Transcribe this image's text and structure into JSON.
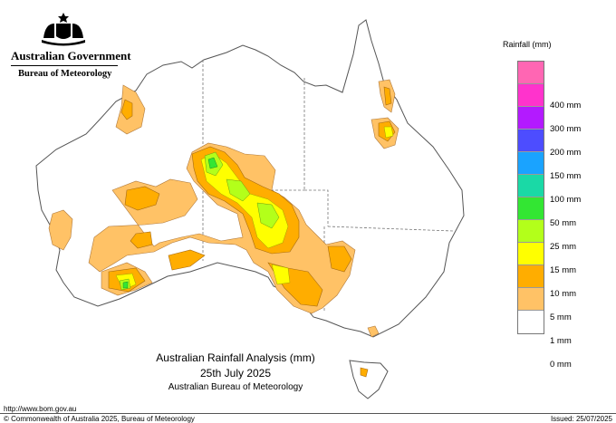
{
  "header": {
    "government": "Australian Government",
    "bureau": "Bureau of Meteorology"
  },
  "legend": {
    "title": "Rainfall (mm)",
    "items": [
      {
        "label": "",
        "color": "#ff66b3"
      },
      {
        "label": "400 mm",
        "color": "#ff33cc"
      },
      {
        "label": "300 mm",
        "color": "#b31aff"
      },
      {
        "label": "200 mm",
        "color": "#4d4dff"
      },
      {
        "label": "150 mm",
        "color": "#1aa3ff"
      },
      {
        "label": "100 mm",
        "color": "#1ad9a6"
      },
      {
        "label": "50 mm",
        "color": "#33e633"
      },
      {
        "label": "25 mm",
        "color": "#b3ff1a"
      },
      {
        "label": "15 mm",
        "color": "#ffff00"
      },
      {
        "label": "10 mm",
        "color": "#ffad00"
      },
      {
        "label": "5 mm",
        "color": "#ffc266"
      },
      {
        "label": "1 mm",
        "color": "#ffffff"
      },
      {
        "label": "0 mm",
        "color": ""
      }
    ]
  },
  "map": {
    "title": "Australian Rainfall Analysis (mm)",
    "date": "25th July 2025",
    "source": "Australian Bureau of Meteorology"
  },
  "footer": {
    "url": "http://www.bom.gov.au",
    "copyright": "© Commonwealth of Australia 2025, Bureau of Meteorology",
    "issued": "Issued: 25/07/2025"
  }
}
